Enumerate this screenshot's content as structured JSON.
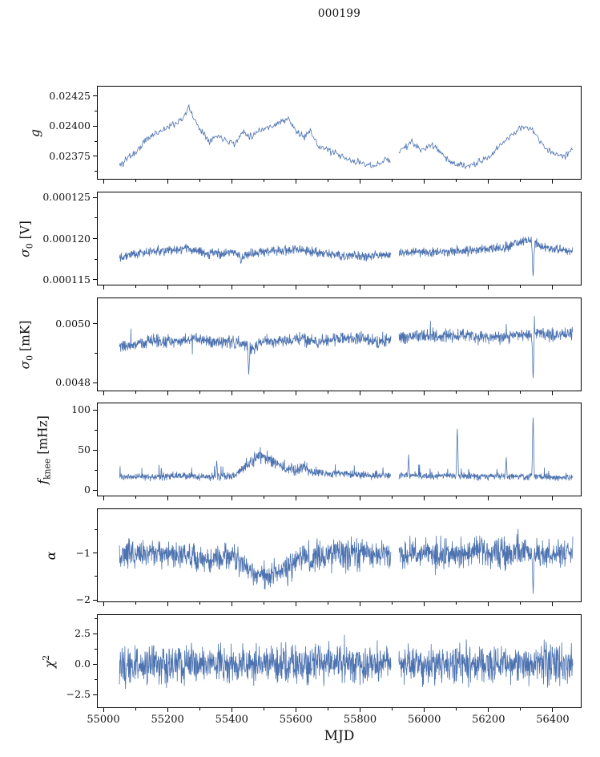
{
  "chart_data": {
    "type": "line",
    "title": "000199",
    "xlabel": "MJD",
    "grid": false,
    "line_color": "#4c72b0",
    "x_range": [
      54980,
      56490
    ],
    "x_data_range": [
      55048,
      56465
    ],
    "x_major_ticks": [
      55000,
      55200,
      55400,
      55600,
      55800,
      56000,
      56200,
      56400
    ],
    "x_minor_step": 100,
    "gaps": [
      [
        55897,
        55921
      ]
    ],
    "panels": [
      {
        "id": "g",
        "ylabel": "g",
        "ylabel_segments": [
          {
            "t": "g",
            "i": 1
          }
        ],
        "ylim": [
          0.023555,
          0.024335
        ],
        "yticks": [
          {
            "v": 0.02425,
            "label": "0.02425"
          },
          {
            "v": 0.024,
            "label": "0.02400"
          },
          {
            "v": 0.02375,
            "label": "0.02375"
          }
        ],
        "trend": [
          [
            55048,
            0.02366
          ],
          [
            55075,
            0.02374
          ],
          [
            55100,
            0.02378
          ],
          [
            55130,
            0.02388
          ],
          [
            55160,
            0.02394
          ],
          [
            55190,
            0.02398
          ],
          [
            55220,
            0.02402
          ],
          [
            55250,
            0.02408
          ],
          [
            55265,
            0.02416
          ],
          [
            55285,
            0.02404
          ],
          [
            55305,
            0.02396
          ],
          [
            55330,
            0.02388
          ],
          [
            55355,
            0.02392
          ],
          [
            55380,
            0.02389
          ],
          [
            55410,
            0.02385
          ],
          [
            55435,
            0.02396
          ],
          [
            55460,
            0.02391
          ],
          [
            55485,
            0.02397
          ],
          [
            55515,
            0.02399
          ],
          [
            55545,
            0.02403
          ],
          [
            55575,
            0.02406
          ],
          [
            55600,
            0.02396
          ],
          [
            55625,
            0.0239
          ],
          [
            55645,
            0.02398
          ],
          [
            55665,
            0.02384
          ],
          [
            55690,
            0.02381
          ],
          [
            55720,
            0.02377
          ],
          [
            55750,
            0.02373
          ],
          [
            55780,
            0.0237
          ],
          [
            55815,
            0.02369
          ],
          [
            55845,
            0.02365
          ],
          [
            55875,
            0.02372
          ],
          [
            55905,
            0.02371
          ],
          [
            55935,
            0.02382
          ],
          [
            55965,
            0.02386
          ],
          [
            55995,
            0.02379
          ],
          [
            56025,
            0.02385
          ],
          [
            56055,
            0.02377
          ],
          [
            56085,
            0.02369
          ],
          [
            56115,
            0.02367
          ],
          [
            56145,
            0.02366
          ],
          [
            56175,
            0.0237
          ],
          [
            56205,
            0.02374
          ],
          [
            56235,
            0.02383
          ],
          [
            56265,
            0.02391
          ],
          [
            56295,
            0.02397
          ],
          [
            56325,
            0.024
          ],
          [
            56355,
            0.02391
          ],
          [
            56385,
            0.02379
          ],
          [
            56415,
            0.02377
          ],
          [
            56440,
            0.02374
          ],
          [
            56465,
            0.02382
          ]
        ],
        "noise": 3.5e-05,
        "noise_trend": [
          [
            55048,
            5e-05
          ],
          [
            55120,
            3.8e-05
          ],
          [
            55200,
            3e-05
          ],
          [
            56465,
            3e-05
          ]
        ],
        "samples": 620,
        "seed": 11
      },
      {
        "id": "sigma0-v",
        "ylabel": "sigma_0 [V]",
        "ylabel_segments": [
          {
            "t": "σ",
            "i": 1
          },
          {
            "t": "0",
            "sub": 1
          },
          {
            "t": " [V]"
          }
        ],
        "ylim": [
          0.0001143,
          0.0001257
        ],
        "yticks": [
          {
            "v": 0.000125,
            "label": "0.000125"
          },
          {
            "v": 0.00012,
            "label": "0.000120"
          },
          {
            "v": 0.000115,
            "label": "0.000115"
          }
        ],
        "trend": [
          [
            55048,
            0.0001178
          ],
          [
            55090,
            0.0001181
          ],
          [
            55130,
            0.0001183
          ],
          [
            55180,
            0.0001185
          ],
          [
            55240,
            0.0001186
          ],
          [
            55265,
            0.0001189
          ],
          [
            55285,
            0.0001184
          ],
          [
            55320,
            0.0001181
          ],
          [
            55360,
            0.0001182
          ],
          [
            55400,
            0.0001184
          ],
          [
            55425,
            0.0001177
          ],
          [
            55455,
            0.0001181
          ],
          [
            55500,
            0.0001184
          ],
          [
            55550,
            0.0001185
          ],
          [
            55600,
            0.0001186
          ],
          [
            55650,
            0.0001184
          ],
          [
            55700,
            0.0001181
          ],
          [
            55750,
            0.0001179
          ],
          [
            55800,
            0.0001178
          ],
          [
            55850,
            0.000118
          ],
          [
            55890,
            0.0001179
          ],
          [
            55930,
            0.0001182
          ],
          [
            55970,
            0.0001184
          ],
          [
            56010,
            0.0001183
          ],
          [
            56060,
            0.0001184
          ],
          [
            56110,
            0.0001185
          ],
          [
            56160,
            0.0001186
          ],
          [
            56210,
            0.0001187
          ],
          [
            56260,
            0.000119
          ],
          [
            56305,
            0.0001196
          ],
          [
            56335,
            0.0001199
          ],
          [
            56365,
            0.0001191
          ],
          [
            56400,
            0.0001187
          ],
          [
            56440,
            0.0001185
          ],
          [
            56465,
            0.0001186
          ]
        ],
        "noise": 6e-07,
        "spikes": [
          [
            56341,
            0.0001147,
            5
          ],
          [
            55428,
            0.0001168,
            3
          ]
        ],
        "samples": 1500,
        "seed": 22
      },
      {
        "id": "sigma0-mk",
        "ylabel": "sigma_0 [mK]",
        "ylabel_segments": [
          {
            "t": "σ",
            "i": 1
          },
          {
            "t": "0",
            "sub": 1
          },
          {
            "t": " [mK]"
          }
        ],
        "ylim": [
          0.00477,
          0.00509
        ],
        "yticks": [
          {
            "v": 0.005,
            "label": "0.0050"
          },
          {
            "v": 0.0048,
            "label": "0.0048"
          }
        ],
        "trend": [
          [
            55048,
            0.00492
          ],
          [
            55100,
            0.00493
          ],
          [
            55150,
            0.00494
          ],
          [
            55220,
            0.00494
          ],
          [
            55280,
            0.00495
          ],
          [
            55340,
            0.00494
          ],
          [
            55400,
            0.00494
          ],
          [
            55435,
            0.00493
          ],
          [
            55465,
            0.00492
          ],
          [
            55505,
            0.00494
          ],
          [
            55560,
            0.00494
          ],
          [
            55620,
            0.00495
          ],
          [
            55680,
            0.00494
          ],
          [
            55740,
            0.00495
          ],
          [
            55800,
            0.00495
          ],
          [
            55860,
            0.00494
          ],
          [
            55920,
            0.00495
          ],
          [
            55960,
            0.00496
          ],
          [
            56020,
            0.00496
          ],
          [
            56080,
            0.00496
          ],
          [
            56140,
            0.00496
          ],
          [
            56200,
            0.00495
          ],
          [
            56260,
            0.00496
          ],
          [
            56320,
            0.00496
          ],
          [
            56360,
            0.00497
          ],
          [
            56410,
            0.00496
          ],
          [
            56465,
            0.00497
          ]
        ],
        "noise": 2.4e-05,
        "spike_prob": 0.012,
        "spike_amp": 5e-05,
        "spike_sign": "both",
        "spikes": [
          [
            55452,
            0.00481,
            4
          ],
          [
            56341,
            0.00479,
            4
          ]
        ],
        "samples": 1500,
        "seed": 33
      },
      {
        "id": "fknee",
        "ylabel": "f_knee [mHz]",
        "ylabel_segments": [
          {
            "t": "f",
            "i": 1
          },
          {
            "t": "knee",
            "sub": 1
          },
          {
            "t": " [mHz]"
          }
        ],
        "ylim": [
          -8,
          109
        ],
        "yticks": [
          {
            "v": 100,
            "label": "100"
          },
          {
            "v": 50,
            "label": "50"
          },
          {
            "v": 0,
            "label": "0"
          }
        ],
        "trend": [
          [
            55048,
            16
          ],
          [
            55150,
            16
          ],
          [
            55250,
            17
          ],
          [
            55350,
            16
          ],
          [
            55405,
            17
          ],
          [
            55435,
            26
          ],
          [
            55465,
            38
          ],
          [
            55485,
            43
          ],
          [
            55505,
            40
          ],
          [
            55535,
            34
          ],
          [
            55565,
            28
          ],
          [
            55600,
            24
          ],
          [
            55622,
            28
          ],
          [
            55645,
            23
          ],
          [
            55700,
            20
          ],
          [
            55760,
            19
          ],
          [
            55820,
            18
          ],
          [
            55880,
            17
          ],
          [
            55940,
            18
          ],
          [
            56000,
            17
          ],
          [
            56060,
            17
          ],
          [
            56120,
            17
          ],
          [
            56180,
            16
          ],
          [
            56240,
            17
          ],
          [
            56300,
            16
          ],
          [
            56360,
            16
          ],
          [
            56420,
            15
          ],
          [
            56465,
            15
          ]
        ],
        "noise": 5,
        "noise_trend": [
          [
            55048,
            4.5
          ],
          [
            55420,
            5.5
          ],
          [
            55480,
            10
          ],
          [
            55560,
            8
          ],
          [
            55625,
            7
          ],
          [
            55700,
            5
          ],
          [
            56465,
            4.5
          ]
        ],
        "spike_prob": 0.035,
        "spike_amp": 13,
        "spike_sign": "up",
        "spikes": [
          [
            56104,
            84,
            4
          ],
          [
            56341,
            103,
            4
          ],
          [
            55952,
            47,
            3
          ],
          [
            56257,
            44,
            3
          ],
          [
            55352,
            40,
            3
          ]
        ],
        "samples": 1500,
        "seed": 44
      },
      {
        "id": "alpha",
        "ylabel": "alpha",
        "ylabel_segments": [
          {
            "t": "α",
            "i": 1
          }
        ],
        "ylim": [
          -2.05,
          -0.05
        ],
        "yticks": [
          {
            "v": -1,
            "label": "−1"
          },
          {
            "v": -2,
            "label": "−2"
          }
        ],
        "trend": [
          [
            55048,
            -1.0
          ],
          [
            55150,
            -1.0
          ],
          [
            55250,
            -1.05
          ],
          [
            55305,
            -1.15
          ],
          [
            55355,
            -1.1
          ],
          [
            55405,
            -1.08
          ],
          [
            55435,
            -1.3
          ],
          [
            55475,
            -1.45
          ],
          [
            55515,
            -1.5
          ],
          [
            55555,
            -1.42
          ],
          [
            55590,
            -1.22
          ],
          [
            55620,
            -1.06
          ],
          [
            55650,
            -1.12
          ],
          [
            55700,
            -1.02
          ],
          [
            55800,
            -1.0
          ],
          [
            55900,
            -1.05
          ],
          [
            56000,
            -1.0
          ],
          [
            56100,
            -1.02
          ],
          [
            56200,
            -0.97
          ],
          [
            56300,
            -1.0
          ],
          [
            56400,
            -1.0
          ],
          [
            56465,
            -1.0
          ]
        ],
        "noise": 0.33,
        "noise_trend": [
          [
            55048,
            0.33
          ],
          [
            55290,
            0.28
          ],
          [
            55400,
            0.32
          ],
          [
            55480,
            0.26
          ],
          [
            55560,
            0.32
          ],
          [
            55650,
            0.34
          ],
          [
            56465,
            0.32
          ]
        ],
        "spike_prob": 0.02,
        "spike_amp": 0.4,
        "spike_sign": "both",
        "spikes": [
          [
            56341,
            -2.0,
            4
          ]
        ],
        "samples": 1500,
        "seed": 55
      },
      {
        "id": "chi2",
        "ylabel": "chi^2",
        "ylabel_segments": [
          {
            "t": "χ",
            "i": 1
          },
          {
            "t": "2",
            "sup": 1
          }
        ],
        "ylim": [
          -3.6,
          4.1
        ],
        "yticks": [
          {
            "v": 2.5,
            "label": "2.5"
          },
          {
            "v": 0.0,
            "label": "0.0"
          },
          {
            "v": -2.5,
            "label": "−2.5"
          }
        ],
        "trend": [
          [
            55048,
            0
          ],
          [
            56465,
            0
          ]
        ],
        "noise": 1.6,
        "spike_prob": 0.03,
        "spike_amp": 1.2,
        "spike_sign": "both",
        "samples": 1600,
        "seed": 66
      }
    ]
  }
}
